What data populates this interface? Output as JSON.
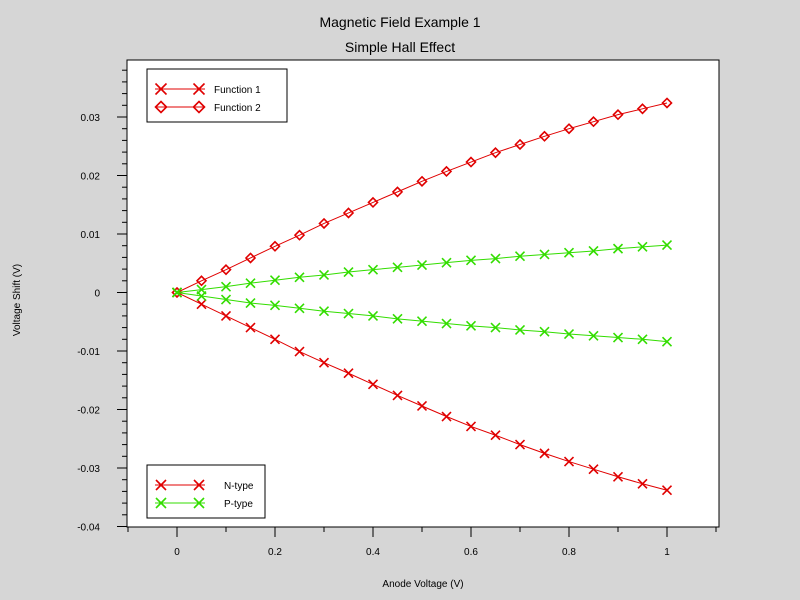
{
  "chart_data": {
    "type": "line",
    "title": "Magnetic Field Example 1",
    "subtitle": "Simple Hall Effect",
    "xlabel": "Anode Voltage (V)",
    "ylabel": "Voltage Shift (V)",
    "xlim": [
      -0.1,
      1.1
    ],
    "ylim": [
      -0.04,
      0.04
    ],
    "x_ticks": [
      0,
      0.2,
      0.4,
      0.6,
      0.8,
      1
    ],
    "x_tick_labels": [
      "0",
      "0.2",
      "0.4",
      "0.6",
      "0.8",
      "1"
    ],
    "y_ticks": [
      -0.04,
      -0.03,
      -0.02,
      -0.01,
      0,
      0.01,
      0.02,
      0.03
    ],
    "y_tick_labels": [
      "-0.04",
      "-0.03",
      "-0.02",
      "-0.01",
      "0",
      "0.01",
      "0.02",
      "0.03"
    ],
    "grid": false,
    "x": [
      0,
      0.05,
      0.1,
      0.15,
      0.2,
      0.25,
      0.3,
      0.35,
      0.4,
      0.45,
      0.5,
      0.55,
      0.6,
      0.65,
      0.7,
      0.75,
      0.8,
      0.85,
      0.9,
      0.95,
      1
    ],
    "series": [
      {
        "name": "Function 1",
        "color": "#e00000",
        "marker": "x",
        "legend_group": "functions",
        "values": [
          0,
          -0.002,
          -0.004,
          -0.006,
          -0.008,
          -0.0101,
          -0.012,
          -0.0138,
          -0.0157,
          -0.0176,
          -0.0194,
          -0.0212,
          -0.0229,
          -0.0244,
          -0.026,
          -0.0275,
          -0.0289,
          -0.0302,
          -0.0315,
          -0.0327,
          -0.0338
        ]
      },
      {
        "name": "Function 2",
        "color": "#e00000",
        "marker": "diamond",
        "legend_group": "functions",
        "values": [
          0,
          0.002,
          0.0039,
          0.0059,
          0.0079,
          0.0098,
          0.0118,
          0.0136,
          0.0154,
          0.0172,
          0.019,
          0.0207,
          0.0223,
          0.0239,
          0.0253,
          0.0267,
          0.028,
          0.0292,
          0.0304,
          0.0314,
          0.0324
        ]
      },
      {
        "name": "",
        "color": "#33dd00",
        "marker": "x",
        "legend_group": "none",
        "values": [
          0,
          0.0005,
          0.001,
          0.0016,
          0.0021,
          0.0026,
          0.003,
          0.0035,
          0.0039,
          0.0043,
          0.0047,
          0.0051,
          0.0055,
          0.0058,
          0.0062,
          0.0065,
          0.0068,
          0.0071,
          0.0075,
          0.0078,
          0.0081
        ]
      },
      {
        "name": "",
        "color": "#33dd00",
        "marker": "x",
        "legend_group": "none",
        "values": [
          0,
          -0.0006,
          -0.0012,
          -0.0018,
          -0.0022,
          -0.0027,
          -0.0032,
          -0.0036,
          -0.004,
          -0.0045,
          -0.0049,
          -0.0053,
          -0.0057,
          -0.006,
          -0.0064,
          -0.0067,
          -0.0071,
          -0.0074,
          -0.0077,
          -0.008,
          -0.0084
        ]
      }
    ],
    "legends": [
      {
        "placement": "top-left",
        "entries": [
          {
            "label": "Function 1",
            "color": "#e00000",
            "marker": "x"
          },
          {
            "label": "Function 2",
            "color": "#e00000",
            "marker": "diamond"
          }
        ]
      },
      {
        "placement": "bottom-left",
        "entries": [
          {
            "label": "N-type",
            "color": "#e00000",
            "marker": "x"
          },
          {
            "label": "P-type",
            "color": "#33dd00",
            "marker": "x"
          }
        ]
      }
    ]
  }
}
